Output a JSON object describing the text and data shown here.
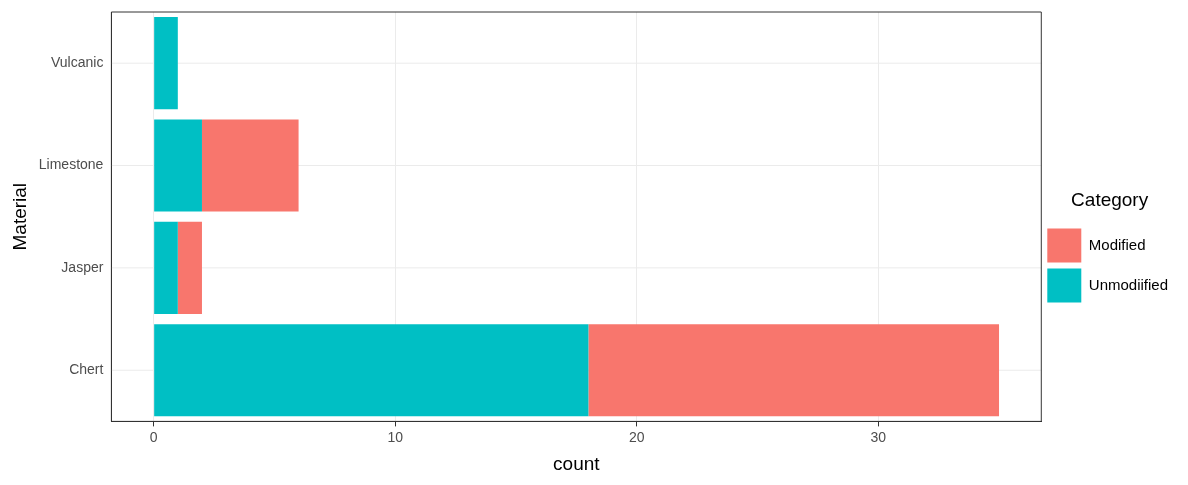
{
  "chart_data": {
    "type": "bar",
    "orientation": "horizontal",
    "stacked": true,
    "xlabel": "count",
    "ylabel": "Material",
    "legend_title": "Category",
    "categories": [
      "Vulcanic",
      "Limestone",
      "Jasper",
      "Chert"
    ],
    "series": [
      {
        "name": "Unmodiified",
        "color": "#00bfc4",
        "values": [
          1,
          2,
          1,
          18
        ]
      },
      {
        "name": "Modified",
        "color": "#f8766d",
        "values": [
          null,
          4,
          1,
          17
        ]
      }
    ],
    "xlim": [
      -1.75,
      36.75
    ],
    "xticks": [
      0,
      10,
      20,
      30
    ],
    "grid": true,
    "legend": "right"
  }
}
